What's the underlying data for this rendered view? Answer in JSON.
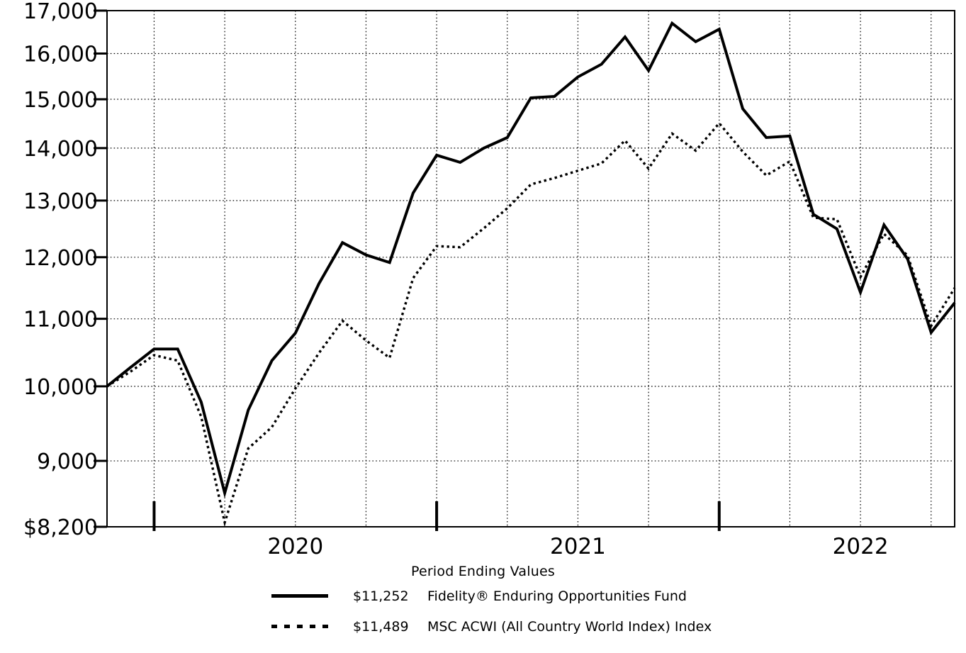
{
  "figure": {
    "axis_title": "Period Ending Values"
  },
  "legend": {
    "items": [
      {
        "style": "solid",
        "value": "$11,252",
        "name": "Fidelity® Enduring Opportunities Fund"
      },
      {
        "style": "dotted",
        "value": "$11,489",
        "name": "MSC ACWI (All Country World Index) Index"
      }
    ]
  },
  "chart_data": {
    "type": "line",
    "title": "Period Ending Values",
    "y_scale": "log",
    "ylim": [
      8200,
      17000
    ],
    "grid": "dotted, horizontal at each 1,000 and vertical at each quarter",
    "legend_position": "below axis",
    "x": [
      "2019-10",
      "2019-11",
      "2019-12",
      "2020-01",
      "2020-02",
      "2020-03",
      "2020-04",
      "2020-05",
      "2020-06",
      "2020-07",
      "2020-08",
      "2020-09",
      "2020-10",
      "2020-11",
      "2020-12",
      "2021-01",
      "2021-02",
      "2021-03",
      "2021-04",
      "2021-05",
      "2021-06",
      "2021-07",
      "2021-08",
      "2021-09",
      "2021-10",
      "2021-11",
      "2021-12",
      "2022-01",
      "2022-02",
      "2022-03",
      "2022-04",
      "2022-05",
      "2022-06",
      "2022-07",
      "2022-08",
      "2022-09",
      "2022-10"
    ],
    "series": [
      {
        "name": "Fidelity® Enduring Opportunities Fund",
        "style": "solid",
        "ending_value": 11252,
        "values": [
          10000,
          10270,
          10540,
          10540,
          9780,
          8600,
          9670,
          10370,
          10780,
          11560,
          12250,
          12040,
          11910,
          13140,
          13860,
          13720,
          14000,
          14210,
          15030,
          15060,
          15480,
          15760,
          16380,
          15620,
          16700,
          16270,
          16560,
          14800,
          14210,
          14240,
          12750,
          12490,
          11420,
          12560,
          11970,
          10790,
          11252
        ]
      },
      {
        "name": "MSC ACWI (All Country World Index) Index",
        "style": "dotted",
        "ending_value": 11489,
        "values": [
          10000,
          10210,
          10450,
          10370,
          9580,
          8250,
          9160,
          9440,
          9970,
          10480,
          10970,
          10670,
          10410,
          11650,
          12190,
          12170,
          12500,
          12860,
          13300,
          13420,
          13560,
          13700,
          14150,
          13600,
          14290,
          13950,
          14500,
          13930,
          13470,
          13740,
          12690,
          12660,
          11670,
          12400,
          12030,
          10890,
          11489
        ]
      }
    ],
    "y_ticks": [
      {
        "value": 8200,
        "label": "$8,200",
        "grid": false
      },
      {
        "value": 9000,
        "label": "9,000",
        "grid": true
      },
      {
        "value": 10000,
        "label": "10,000",
        "grid": true
      },
      {
        "value": 11000,
        "label": "11,000",
        "grid": true
      },
      {
        "value": 12000,
        "label": "12,000",
        "grid": true
      },
      {
        "value": 13000,
        "label": "13,000",
        "grid": true
      },
      {
        "value": 14000,
        "label": "14,000",
        "grid": true
      },
      {
        "value": 15000,
        "label": "15,000",
        "grid": true
      },
      {
        "value": 16000,
        "label": "16,000",
        "grid": true
      },
      {
        "value": 17000,
        "label": "17,000",
        "grid": false
      }
    ],
    "x_year_labels": [
      {
        "month_index": 8,
        "label": "2020"
      },
      {
        "month_index": 20,
        "label": "2021"
      },
      {
        "month_index": 32,
        "label": "2022"
      }
    ],
    "x_year_tick_months": [
      2,
      14,
      26
    ],
    "x_quarter_grid_months": [
      2,
      5,
      8,
      11,
      14,
      17,
      20,
      23,
      26,
      29,
      32,
      35
    ],
    "colors": {
      "line": "#000000",
      "grid": "#000000",
      "background": "#ffffff"
    }
  }
}
